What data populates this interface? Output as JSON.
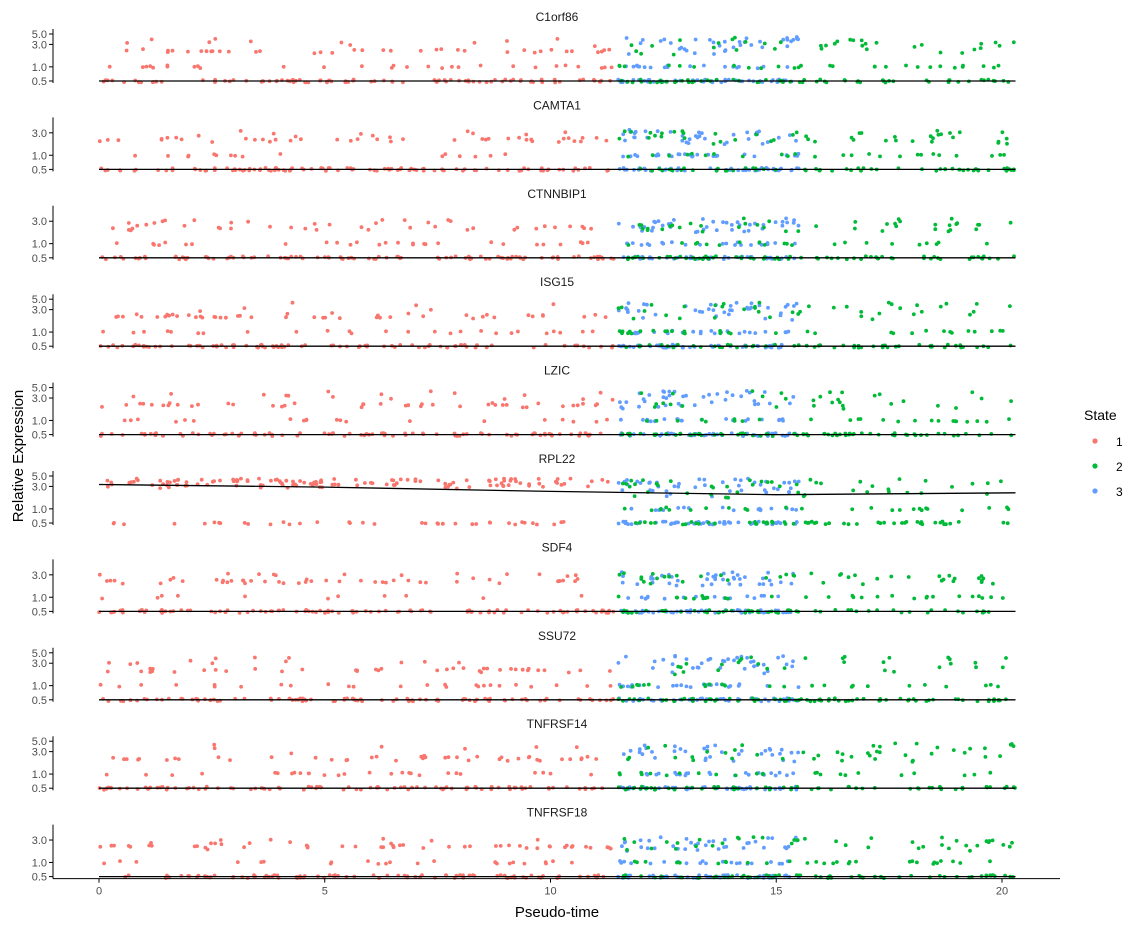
{
  "chart_data": {
    "type": "scatter",
    "facets": "gene panels stacked vertically, shared pseudo-time x axis",
    "xlabel": "Pseudo-time",
    "ylabel": "Relative Expression",
    "xlim": [
      0,
      20.3
    ],
    "x_ticks": [
      0,
      5,
      10,
      15,
      20
    ],
    "y_scale": "log10",
    "y_ticks": [
      0.5,
      1.0,
      3.0,
      5.0
    ],
    "grid": false,
    "legend": {
      "title": "State",
      "position": "right",
      "entries": [
        {
          "label": "1",
          "color": "#F8766D"
        },
        {
          "label": "2",
          "color": "#00BA38"
        },
        {
          "label": "3",
          "color": "#619CFF"
        }
      ]
    },
    "state_ranges": [
      {
        "state": "1",
        "x_range": [
          0,
          11.5
        ]
      },
      {
        "state": "3",
        "x_range": [
          11.5,
          15.5
        ]
      },
      {
        "state": "2",
        "x_range": [
          11.5,
          20.3
        ]
      }
    ],
    "panels": [
      {
        "gene": "C1orf86",
        "y_ticks": [
          0.5,
          1.0,
          3.0,
          5.0
        ],
        "trend": [
          [
            0,
            0.5
          ],
          [
            20.3,
            0.5
          ]
        ]
      },
      {
        "gene": "CAMTA1",
        "y_ticks": [
          0.5,
          1.0,
          3.0
        ],
        "trend": [
          [
            0,
            0.5
          ],
          [
            20.3,
            0.5
          ]
        ]
      },
      {
        "gene": "CTNNBIP1",
        "y_ticks": [
          0.5,
          1.0,
          3.0
        ],
        "trend": [
          [
            0,
            0.5
          ],
          [
            20.3,
            0.5
          ]
        ]
      },
      {
        "gene": "ISG15",
        "y_ticks": [
          0.5,
          1.0,
          3.0,
          5.0
        ],
        "trend": [
          [
            0,
            0.5
          ],
          [
            20.3,
            0.5
          ]
        ]
      },
      {
        "gene": "LZIC",
        "y_ticks": [
          0.5,
          1.0,
          3.0,
          5.0
        ],
        "trend": [
          [
            0,
            0.5
          ],
          [
            20.3,
            0.5
          ]
        ]
      },
      {
        "gene": "RPL22",
        "y_ticks": [
          0.5,
          1.0,
          3.0,
          5.0
        ],
        "trend": [
          [
            0,
            3.3
          ],
          [
            5,
            2.9
          ],
          [
            10,
            2.35
          ],
          [
            15,
            2.0
          ],
          [
            20.3,
            2.2
          ]
        ]
      },
      {
        "gene": "SDF4",
        "y_ticks": [
          0.5,
          1.0,
          3.0
        ],
        "trend": [
          [
            0,
            0.5
          ],
          [
            20.3,
            0.5
          ]
        ]
      },
      {
        "gene": "SSU72",
        "y_ticks": [
          0.5,
          1.0,
          3.0,
          5.0
        ],
        "trend": [
          [
            0,
            0.5
          ],
          [
            20.3,
            0.5
          ]
        ]
      },
      {
        "gene": "TNFRSF14",
        "y_ticks": [
          0.5,
          1.0,
          3.0,
          5.0
        ],
        "trend": [
          [
            0,
            0.5
          ],
          [
            20.3,
            0.5
          ]
        ]
      },
      {
        "gene": "TNFRSF18",
        "y_ticks": [
          0.5,
          1.0,
          3.0
        ],
        "trend": [
          [
            0,
            0.5
          ],
          [
            20.3,
            0.5
          ]
        ]
      }
    ]
  }
}
